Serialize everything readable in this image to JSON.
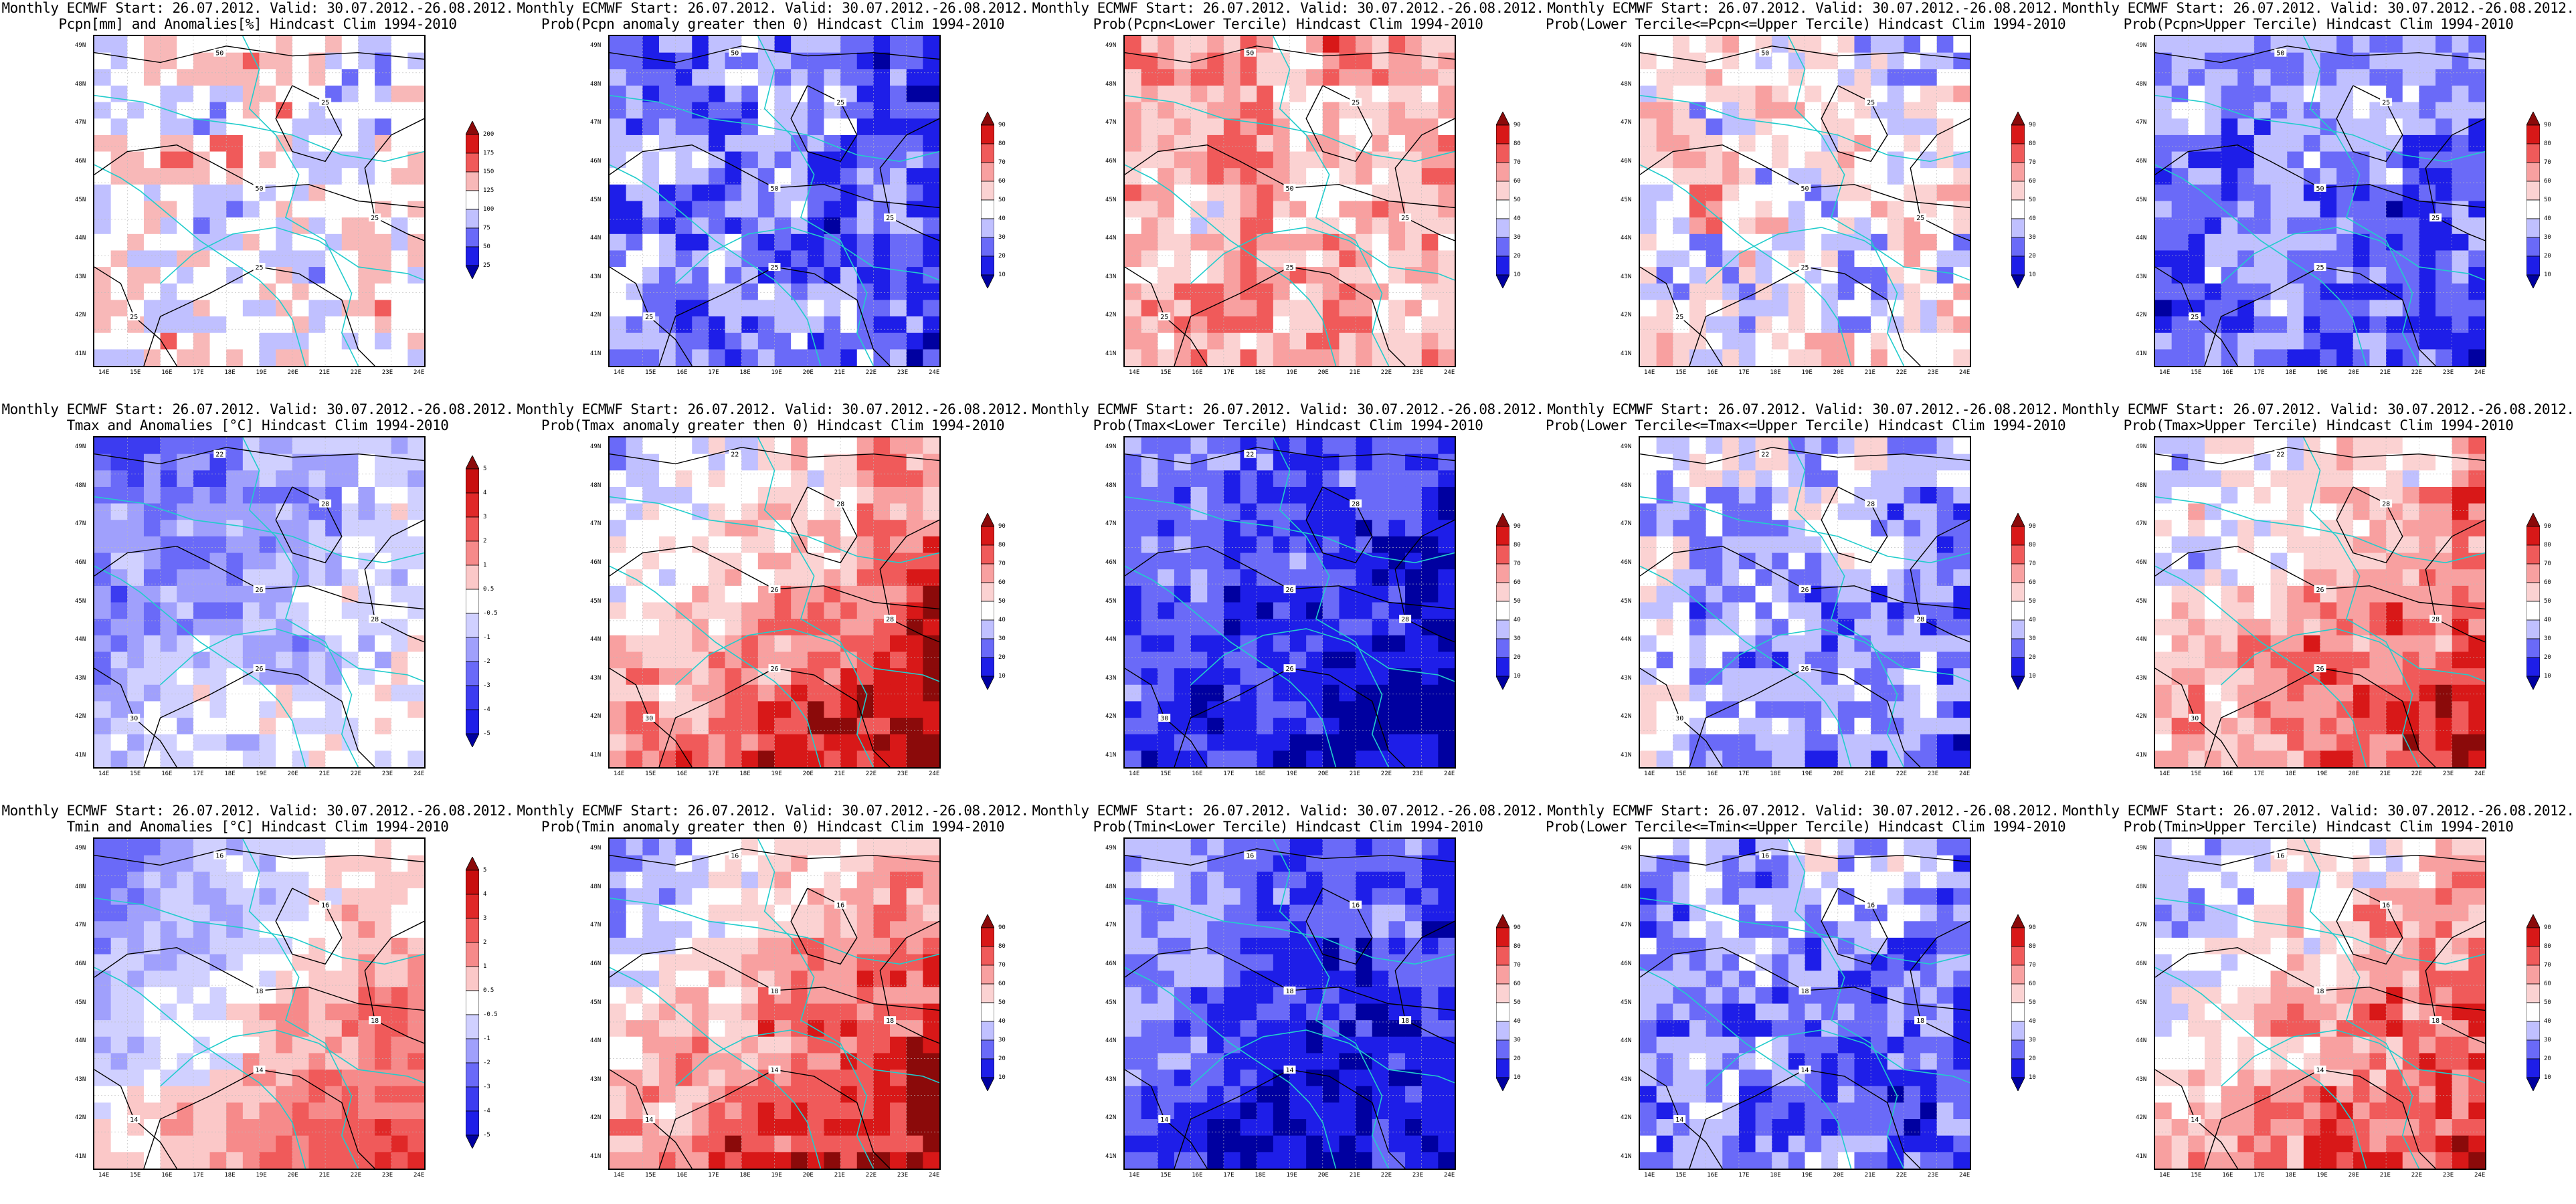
{
  "figure": {
    "title_line1": "Monthly ECMWF Start: 26.07.2012. Valid: 30.07.2012.-26.08.2012.",
    "lat_ticks": [
      "49N",
      "48N",
      "47N",
      "46N",
      "45N",
      "44N",
      "43N",
      "42N",
      "41N"
    ],
    "lon_ticks": [
      "14E",
      "15E",
      "16E",
      "17E",
      "18E",
      "19E",
      "20E",
      "21E",
      "22E",
      "23E",
      "24E"
    ],
    "colors": {
      "coast": "#22cccc",
      "contour": "#000000",
      "grid": "#bbbbbb"
    }
  },
  "scales": {
    "precip": {
      "labels": [
        "200",
        "175",
        "150",
        "125",
        "100",
        "75",
        "50",
        "25"
      ],
      "colors": [
        "#8b0a0a",
        "#d81818",
        "#f05a5a",
        "#f8b8b8",
        "#ffffff",
        "#c0c0ff",
        "#6a6af8",
        "#1e1ee8",
        "#0000a0"
      ]
    },
    "temp": {
      "labels": [
        "5",
        "4",
        "3",
        "2",
        "1",
        "0.5",
        "-0.5",
        "-1",
        "-2",
        "-3",
        "-4",
        "-5"
      ],
      "colors": [
        "#8b0a0a",
        "#c80e0e",
        "#e02828",
        "#f05a5a",
        "#f68a8a",
        "#fbc8c8",
        "#ffffff",
        "#d0d0ff",
        "#a0a0fc",
        "#6a6af8",
        "#3c3cf0",
        "#1e1ee8",
        "#0000a0"
      ]
    },
    "prob": {
      "labels": [
        "90",
        "80",
        "70",
        "60",
        "50",
        "40",
        "30",
        "20",
        "10"
      ],
      "colors": [
        "#8b0a0a",
        "#d81818",
        "#f05a5a",
        "#f8a0a0",
        "#fbd2d2",
        "#ffffff",
        "#c0c0ff",
        "#6a6af8",
        "#1e1ee8",
        "#0000a0"
      ]
    }
  },
  "panels": [
    {
      "title2": "Pcpn[mm] and Anomalies[%] Hindcast Clim 1994-2010",
      "scale": "precip",
      "base": 4,
      "grad": 0,
      "var": 1,
      "contours": [
        "50",
        "50",
        "25",
        "25",
        "25",
        "25"
      ]
    },
    {
      "title2": "Prob(Pcpn anomaly greater then 0) Hindcast Clim 1994-2010",
      "scale": "prob",
      "base": 2.3,
      "grad": -0.5,
      "var": 1.2,
      "contours": [
        "50",
        "50",
        "25",
        "25",
        "25",
        "25"
      ]
    },
    {
      "title2": "Prob(Pcpn<Lower Tercile) Hindcast Clim 1994-2010",
      "scale": "prob",
      "base": 5.6,
      "grad": 0.4,
      "var": 1.2,
      "contours": [
        "50",
        "50",
        "25",
        "25",
        "25",
        "25"
      ]
    },
    {
      "title2": "Prob(Lower Tercile<=Pcpn<=Upper Tercile) Hindcast Clim 1994-2010",
      "scale": "prob",
      "base": 4.2,
      "grad": -0.4,
      "var": 1.4,
      "contours": [
        "50",
        "50",
        "25",
        "25",
        "25",
        "25"
      ]
    },
    {
      "title2": "Prob(Pcpn>Upper Tercile) Hindcast Clim 1994-2010",
      "scale": "prob",
      "base": 2.2,
      "grad": -0.4,
      "var": 1.0,
      "contours": [
        "50",
        "50",
        "25",
        "25",
        "25",
        "25"
      ]
    },
    {
      "title2": "Tmax and Anomalies [°C] Hindcast Clim 1994-2010",
      "scale": "temp",
      "base": 4.6,
      "grad": 1.6,
      "var": 1.0,
      "contours": [
        "22",
        "26",
        "26",
        "28",
        "30",
        "28"
      ]
    },
    {
      "title2": "Prob(Tmax anomaly greater then 0) Hindcast Clim 1994-2010",
      "scale": "prob",
      "base": 5.8,
      "grad": 3.2,
      "var": 1.0,
      "contours": [
        "22",
        "26",
        "26",
        "28",
        "30",
        "28"
      ]
    },
    {
      "title2": "Prob(Tmax<Lower Tercile) Hindcast Clim 1994-2010",
      "scale": "prob",
      "base": 1.4,
      "grad": -1.2,
      "var": 0.8,
      "contours": [
        "22",
        "26",
        "26",
        "28",
        "30",
        "28"
      ]
    },
    {
      "title2": "Prob(Lower Tercile<=Tmax<=Upper Tercile) Hindcast Clim 1994-2010",
      "scale": "prob",
      "base": 2.8,
      "grad": -1.0,
      "var": 1.2,
      "contours": [
        "22",
        "26",
        "26",
        "28",
        "30",
        "28"
      ]
    },
    {
      "title2": "Prob(Tmax>Upper Tercile) Hindcast Clim 1994-2010",
      "scale": "prob",
      "base": 5.6,
      "grad": 2.6,
      "var": 1.1,
      "contours": [
        "22",
        "26",
        "26",
        "28",
        "30",
        "28"
      ]
    },
    {
      "title2": "Tmin and Anomalies [°C] Hindcast Clim 1994-2010",
      "scale": "temp",
      "base": 6.4,
      "grad": 3.6,
      "var": 0.8,
      "contours": [
        "16",
        "18",
        "14",
        "18",
        "14",
        "16"
      ]
    },
    {
      "title2": "Prob(Tmin anomaly greater then 0) Hindcast Clim 1994-2010",
      "scale": "prob",
      "base": 5.8,
      "grad": 3.4,
      "var": 1.0,
      "contours": [
        "16",
        "18",
        "14",
        "18",
        "14",
        "16"
      ]
    },
    {
      "title2": "Prob(Tmin<Lower Tercile) Hindcast Clim 1994-2010",
      "scale": "prob",
      "base": 1.5,
      "grad": -1.2,
      "var": 0.8,
      "contours": [
        "16",
        "18",
        "14",
        "18",
        "14",
        "16"
      ]
    },
    {
      "title2": "Prob(Lower Tercile<=Tmin<=Upper Tercile) Hindcast Clim 1994-2010",
      "scale": "prob",
      "base": 2.6,
      "grad": -0.8,
      "var": 1.2,
      "contours": [
        "16",
        "18",
        "14",
        "18",
        "14",
        "16"
      ]
    },
    {
      "title2": "Prob(Tmin>Upper Tercile) Hindcast Clim 1994-2010",
      "scale": "prob",
      "base": 5.5,
      "grad": 2.6,
      "var": 1.1,
      "contours": [
        "16",
        "18",
        "14",
        "18",
        "14",
        "16"
      ]
    }
  ]
}
